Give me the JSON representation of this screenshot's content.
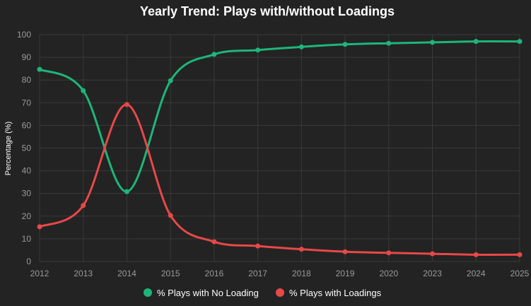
{
  "chart_data": {
    "type": "line",
    "title": "Yearly Trend: Plays with/without Loadings",
    "xlabel": "",
    "ylabel": "Percentage (%)",
    "categories": [
      "2012",
      "2013",
      "2014",
      "2015",
      "2016",
      "2017",
      "2018",
      "2019",
      "2020",
      "2023",
      "2024",
      "2025"
    ],
    "ylim": [
      0,
      100
    ],
    "yticks": [
      0,
      10,
      20,
      30,
      40,
      50,
      60,
      70,
      80,
      90,
      100
    ],
    "grid": true,
    "legend_position": "bottom",
    "series": [
      {
        "name": "% Plays with No Loading",
        "color": "#1db67a",
        "values": [
          84.7,
          75.3,
          30.8,
          79.7,
          91.3,
          93.2,
          94.6,
          95.7,
          96.2,
          96.6,
          97.0,
          97.0
        ]
      },
      {
        "name": "% Plays with Loadings",
        "color": "#e84848",
        "values": [
          15.3,
          24.7,
          69.2,
          20.3,
          8.7,
          6.8,
          5.4,
          4.3,
          3.8,
          3.4,
          3.0,
          3.0
        ]
      }
    ]
  },
  "colors": {
    "background": "#232323",
    "grid": "#3a3a3a",
    "tick_text": "#9a9a9a",
    "title_text": "#ffffff"
  }
}
